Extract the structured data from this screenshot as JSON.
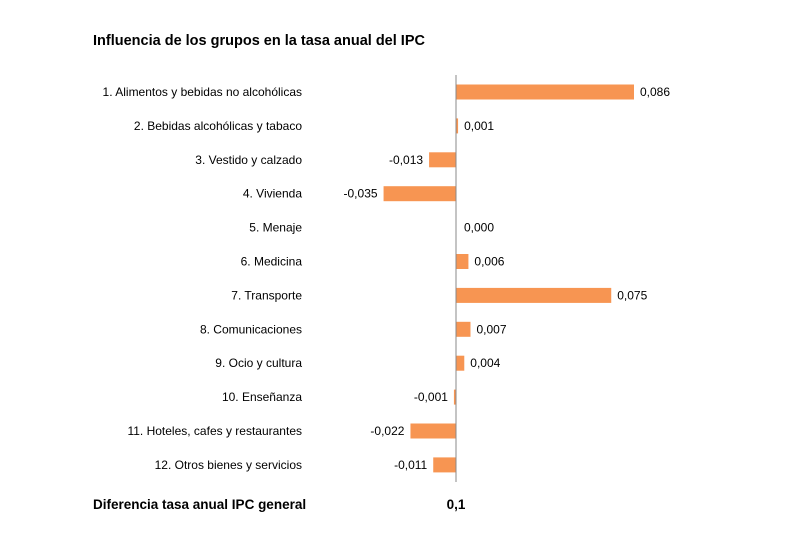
{
  "chart_data": {
    "type": "bar",
    "orientation": "horizontal",
    "title": "Influencia de los grupos en la tasa anual del IPC",
    "categories": [
      "1. Alimentos y bebidas no alcohólicas",
      "2. Bebidas alcohólicas y tabaco",
      "3. Vestido y calzado",
      "4. Vivienda",
      "5. Menaje",
      "6. Medicina",
      "7. Transporte",
      "8. Comunicaciones",
      "9. Ocio y cultura",
      "10. Enseñanza",
      "11. Hoteles, cafes y restaurantes",
      "12. Otros bienes y servicios"
    ],
    "values": [
      0.086,
      0.001,
      -0.013,
      -0.035,
      0.0,
      0.006,
      0.075,
      0.007,
      0.004,
      -0.001,
      -0.022,
      -0.011
    ],
    "data_labels": [
      "0,086",
      "0,001",
      "-0,013",
      "-0,035",
      "0,000",
      "0,006",
      "0,075",
      "0,007",
      "0,004",
      "-0,001",
      "-0,022",
      "-0,011"
    ],
    "bar_color": "#F79552",
    "axis_color": "#888888",
    "grid": false,
    "legend": "none"
  },
  "footer": {
    "label": "Diferencia tasa anual IPC general",
    "value": "0,1"
  }
}
